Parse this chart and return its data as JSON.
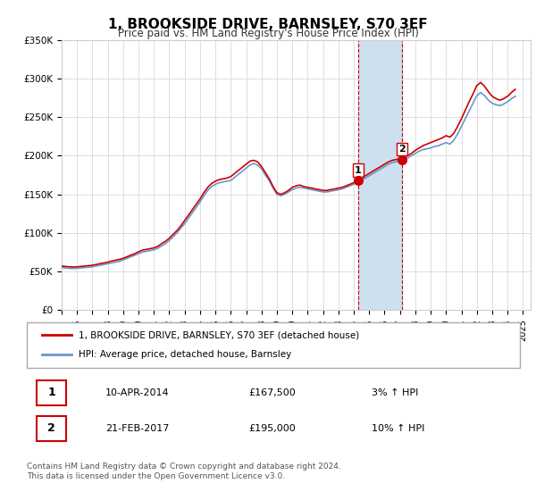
{
  "title": "1, BROOKSIDE DRIVE, BARNSLEY, S70 3EF",
  "subtitle": "Price paid vs. HM Land Registry's House Price Index (HPI)",
  "legend_line1": "1, BROOKSIDE DRIVE, BARNSLEY, S70 3EF (detached house)",
  "legend_line2": "HPI: Average price, detached house, Barnsley",
  "annotation1_label": "1",
  "annotation1_date": "10-APR-2014",
  "annotation1_price": "£167,500",
  "annotation1_hpi": "3% ↑ HPI",
  "annotation2_label": "2",
  "annotation2_date": "21-FEB-2017",
  "annotation2_price": "£195,000",
  "annotation2_hpi": "10% ↑ HPI",
  "footer1": "Contains HM Land Registry data © Crown copyright and database right 2024.",
  "footer2": "This data is licensed under the Open Government Licence v3.0.",
  "red_color": "#cc0000",
  "blue_color": "#6699cc",
  "shade_color": "#cce0f0",
  "background_color": "#ffffff",
  "grid_color": "#dddddd",
  "ylim": [
    0,
    350000
  ],
  "yticks": [
    0,
    50000,
    100000,
    150000,
    200000,
    250000,
    300000,
    350000
  ],
  "xlim_start": 1995.0,
  "xlim_end": 2025.5,
  "sale1_x": 2014.27,
  "sale1_y": 167500,
  "sale2_x": 2017.12,
  "sale2_y": 195000,
  "hpi_data": {
    "years": [
      1995.0,
      1995.25,
      1995.5,
      1995.75,
      1996.0,
      1996.25,
      1996.5,
      1996.75,
      1997.0,
      1997.25,
      1997.5,
      1997.75,
      1998.0,
      1998.25,
      1998.5,
      1998.75,
      1999.0,
      1999.25,
      1999.5,
      1999.75,
      2000.0,
      2000.25,
      2000.5,
      2000.75,
      2001.0,
      2001.25,
      2001.5,
      2001.75,
      2002.0,
      2002.25,
      2002.5,
      2002.75,
      2003.0,
      2003.25,
      2003.5,
      2003.75,
      2004.0,
      2004.25,
      2004.5,
      2004.75,
      2005.0,
      2005.25,
      2005.5,
      2005.75,
      2006.0,
      2006.25,
      2006.5,
      2006.75,
      2007.0,
      2007.25,
      2007.5,
      2007.75,
      2008.0,
      2008.25,
      2008.5,
      2008.75,
      2009.0,
      2009.25,
      2009.5,
      2009.75,
      2010.0,
      2010.25,
      2010.5,
      2010.75,
      2011.0,
      2011.25,
      2011.5,
      2011.75,
      2012.0,
      2012.25,
      2012.5,
      2012.75,
      2013.0,
      2013.25,
      2013.5,
      2013.75,
      2014.0,
      2014.25,
      2014.5,
      2014.75,
      2015.0,
      2015.25,
      2015.5,
      2015.75,
      2016.0,
      2016.25,
      2016.5,
      2016.75,
      2017.0,
      2017.25,
      2017.5,
      2017.75,
      2018.0,
      2018.25,
      2018.5,
      2018.75,
      2019.0,
      2019.25,
      2019.5,
      2019.75,
      2020.0,
      2020.25,
      2020.5,
      2020.75,
      2021.0,
      2021.25,
      2021.5,
      2021.75,
      2022.0,
      2022.25,
      2022.5,
      2022.75,
      2023.0,
      2023.25,
      2023.5,
      2023.75,
      2024.0,
      2024.25,
      2024.5
    ],
    "values": [
      55000,
      54500,
      54000,
      53800,
      54000,
      54500,
      55000,
      55500,
      56000,
      57000,
      58000,
      59000,
      60000,
      61000,
      62000,
      63000,
      65000,
      67000,
      69000,
      71000,
      73000,
      75000,
      76000,
      77000,
      78000,
      80000,
      83000,
      86000,
      90000,
      95000,
      100000,
      106000,
      112000,
      119000,
      126000,
      133000,
      140000,
      148000,
      155000,
      160000,
      163000,
      165000,
      166000,
      167000,
      168000,
      172000,
      176000,
      180000,
      184000,
      188000,
      190000,
      188000,
      183000,
      175000,
      168000,
      158000,
      150000,
      148000,
      150000,
      153000,
      156000,
      158000,
      159000,
      158000,
      157000,
      156000,
      155000,
      154000,
      153000,
      153000,
      154000,
      155000,
      156000,
      157000,
      159000,
      161000,
      163000,
      165000,
      168000,
      171000,
      174000,
      177000,
      180000,
      183000,
      186000,
      189000,
      191000,
      192000,
      193000,
      195000,
      197000,
      200000,
      203000,
      206000,
      208000,
      209000,
      210000,
      212000,
      213000,
      215000,
      217000,
      215000,
      220000,
      228000,
      238000,
      248000,
      258000,
      268000,
      278000,
      282000,
      278000,
      272000,
      268000,
      266000,
      265000,
      267000,
      270000,
      274000,
      277000
    ]
  },
  "price_data": {
    "years": [
      1995.0,
      1995.25,
      1995.5,
      1995.75,
      1996.0,
      1996.25,
      1996.5,
      1996.75,
      1997.0,
      1997.25,
      1997.5,
      1997.75,
      1998.0,
      1998.25,
      1998.5,
      1998.75,
      1999.0,
      1999.25,
      1999.5,
      1999.75,
      2000.0,
      2000.25,
      2000.5,
      2000.75,
      2001.0,
      2001.25,
      2001.5,
      2001.75,
      2002.0,
      2002.25,
      2002.5,
      2002.75,
      2003.0,
      2003.25,
      2003.5,
      2003.75,
      2004.0,
      2004.25,
      2004.5,
      2004.75,
      2005.0,
      2005.25,
      2005.5,
      2005.75,
      2006.0,
      2006.25,
      2006.5,
      2006.75,
      2007.0,
      2007.25,
      2007.5,
      2007.75,
      2008.0,
      2008.25,
      2008.5,
      2008.75,
      2009.0,
      2009.25,
      2009.5,
      2009.75,
      2010.0,
      2010.25,
      2010.5,
      2010.75,
      2011.0,
      2011.25,
      2011.5,
      2011.75,
      2012.0,
      2012.25,
      2012.5,
      2012.75,
      2013.0,
      2013.25,
      2013.5,
      2013.75,
      2014.0,
      2014.25,
      2014.5,
      2014.75,
      2015.0,
      2015.25,
      2015.5,
      2015.75,
      2016.0,
      2016.25,
      2016.5,
      2016.75,
      2017.0,
      2017.25,
      2017.5,
      2017.75,
      2018.0,
      2018.25,
      2018.5,
      2018.75,
      2019.0,
      2019.25,
      2019.5,
      2019.75,
      2020.0,
      2020.25,
      2020.5,
      2020.75,
      2021.0,
      2021.25,
      2021.5,
      2021.75,
      2022.0,
      2022.25,
      2022.5,
      2022.75,
      2023.0,
      2023.25,
      2023.5,
      2023.75,
      2024.0,
      2024.25,
      2024.5
    ],
    "values": [
      57000,
      56500,
      56000,
      55800,
      56000,
      56500,
      57000,
      57500,
      58000,
      59000,
      60000,
      61000,
      62000,
      63500,
      64500,
      65500,
      67000,
      69000,
      71000,
      73000,
      75500,
      77500,
      78500,
      79500,
      80500,
      82500,
      86000,
      89000,
      93000,
      98000,
      103000,
      109000,
      116000,
      123000,
      130000,
      137000,
      144000,
      152000,
      159000,
      164000,
      167000,
      169000,
      170000,
      171000,
      173000,
      177000,
      181000,
      185000,
      189000,
      193000,
      194000,
      192000,
      186000,
      178000,
      170000,
      160000,
      152000,
      150000,
      152000,
      155000,
      159000,
      161000,
      162000,
      160000,
      159000,
      158000,
      157000,
      156000,
      155000,
      155000,
      156000,
      157000,
      158000,
      159000,
      161000,
      163000,
      165000,
      168000,
      171000,
      174000,
      177000,
      180000,
      183000,
      186000,
      189000,
      192000,
      194000,
      195000,
      196000,
      198000,
      200000,
      203000,
      207000,
      210000,
      213000,
      215000,
      217000,
      219000,
      221000,
      223000,
      226000,
      224000,
      229000,
      238000,
      248000,
      259000,
      270000,
      280000,
      291000,
      295000,
      290000,
      283000,
      277000,
      274000,
      272000,
      274000,
      277000,
      282000,
      286000
    ]
  }
}
